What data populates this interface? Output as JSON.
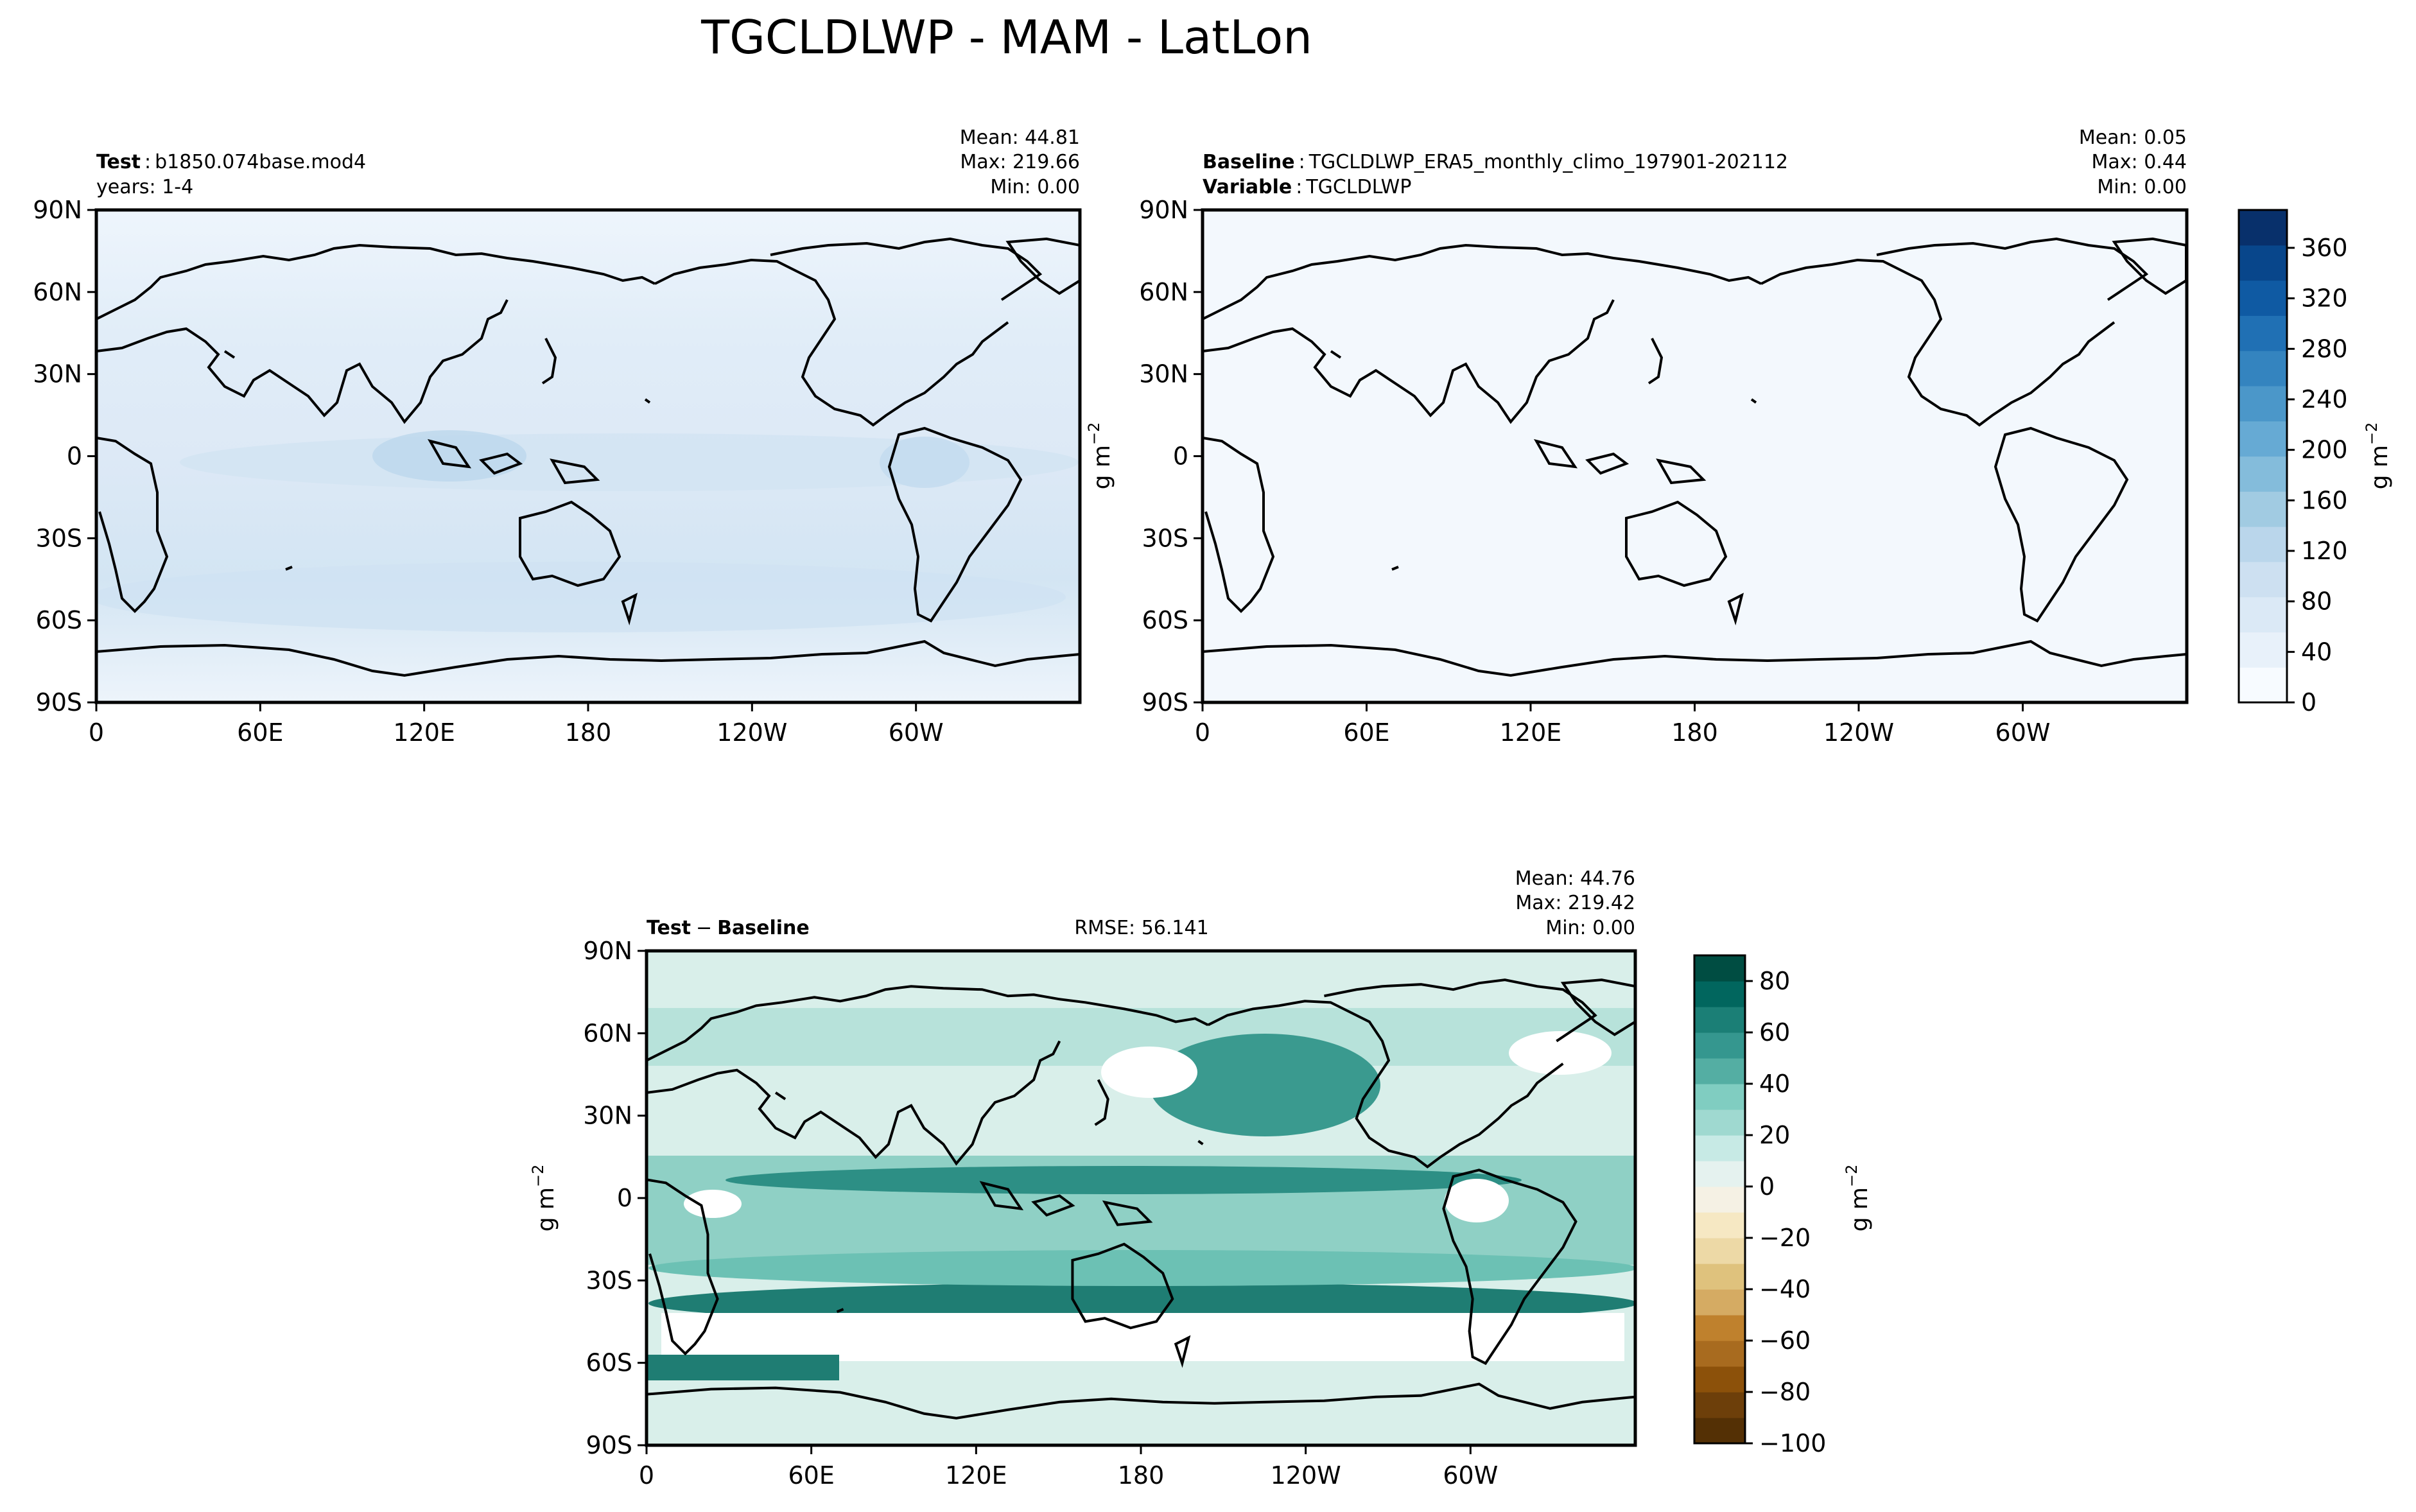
{
  "figure": {
    "title": "TGCLDLWP - MAM - LatLon"
  },
  "axes_ticks": {
    "lon_labels": [
      "0",
      "60E",
      "120E",
      "180",
      "120W",
      "60W"
    ],
    "lon_values": [
      0,
      60,
      120,
      180,
      240,
      300
    ],
    "lat_labels": [
      "90N",
      "60N",
      "30N",
      "0",
      "30S",
      "60S",
      "90S"
    ],
    "lat_values": [
      90,
      60,
      30,
      0,
      -30,
      -60,
      -90
    ]
  },
  "panels": {
    "test": {
      "label_bold": "Test",
      "label_sep": ":",
      "label_text": "b1850.074base.mod4",
      "line2_text": "years: 1-4",
      "stats": [
        "Mean: 44.81",
        "Max: 219.66",
        "Min:  0.00"
      ]
    },
    "baseline": {
      "label_bold": "Baseline",
      "label_sep": ":",
      "label_text": "TGCLDLWP_ERA5_monthly_climo_197901-202112",
      "line2_bold": "Variable",
      "line2_text": "TGCLDLWP",
      "stats": [
        "Mean:  0.05",
        "Max:  0.44",
        "Min:  0.00"
      ]
    },
    "diff": {
      "label_bold": "Test",
      "label_minus": "−",
      "label_bold2": "Baseline",
      "rmse": "RMSE: 56.141",
      "stats": [
        "Mean: 44.76",
        "Max: 219.42",
        "Min:  0.00"
      ]
    }
  },
  "units": {
    "main": "g m",
    "exp": "−2"
  },
  "chart_data": [
    {
      "type": "heatmap",
      "panel": "test",
      "xlim": [
        0,
        360
      ],
      "ylim": [
        -90,
        90
      ],
      "colormap": "Blues",
      "colorbar_range": [
        0,
        390
      ],
      "description_values": {
        "mean": 44.81,
        "max": 219.66,
        "min": 0.0
      }
    },
    {
      "type": "heatmap",
      "panel": "baseline",
      "xlim": [
        0,
        360
      ],
      "ylim": [
        -90,
        90
      ],
      "colormap": "Blues",
      "colorbar_range": [
        0,
        390
      ],
      "description_values": {
        "mean": 0.05,
        "max": 0.44,
        "min": 0.0
      }
    },
    {
      "type": "heatmap",
      "panel": "diff",
      "xlim": [
        0,
        360
      ],
      "ylim": [
        -90,
        90
      ],
      "colormap": "BrBG",
      "colorbar_range": [
        -100,
        90
      ],
      "description_values": {
        "mean": 44.76,
        "max": 219.42,
        "min": 0.0,
        "rmse": 56.141
      }
    }
  ],
  "colorbar_main": {
    "ticks": [
      "0",
      "40",
      "80",
      "120",
      "160",
      "200",
      "240",
      "280",
      "320",
      "360"
    ],
    "tick_values": [
      0,
      40,
      80,
      120,
      160,
      200,
      240,
      280,
      320,
      360
    ],
    "range": [
      0,
      390
    ],
    "colors": [
      "#f7fbff",
      "#e8f1fa",
      "#dbe9f6",
      "#cde0f1",
      "#bad6eb",
      "#a1cbe2",
      "#84bcdb",
      "#66aad4",
      "#4b97c9",
      "#3484bf",
      "#2070b4",
      "#0f5aa3",
      "#08468b",
      "#08306b"
    ]
  },
  "colorbar_diff": {
    "ticks": [
      "80",
      "60",
      "40",
      "20",
      "0",
      "−20",
      "−40",
      "−60",
      "−80",
      "−100"
    ],
    "tick_values": [
      80,
      60,
      40,
      20,
      0,
      -20,
      -40,
      -60,
      -80,
      -100
    ],
    "range": [
      -100,
      90
    ],
    "colors": [
      "#543005",
      "#6d3f0a",
      "#8c510a",
      "#a86b1f",
      "#bf812d",
      "#d5ab63",
      "#dfc27d",
      "#edd9a6",
      "#f6e8c3",
      "#f5f1e4",
      "#e5f2ef",
      "#c7eae5",
      "#9fd9d0",
      "#80cdc1",
      "#54aea3",
      "#35978f",
      "#1b7f76",
      "#01665e",
      "#004d42"
    ]
  },
  "colors": {
    "ocean_test": "#e6f0fa",
    "ocean_baseline": "#f3f8fd",
    "diff_background": "#d8efea",
    "diff_strong": "#1f8a7f",
    "coast": "#000000"
  }
}
